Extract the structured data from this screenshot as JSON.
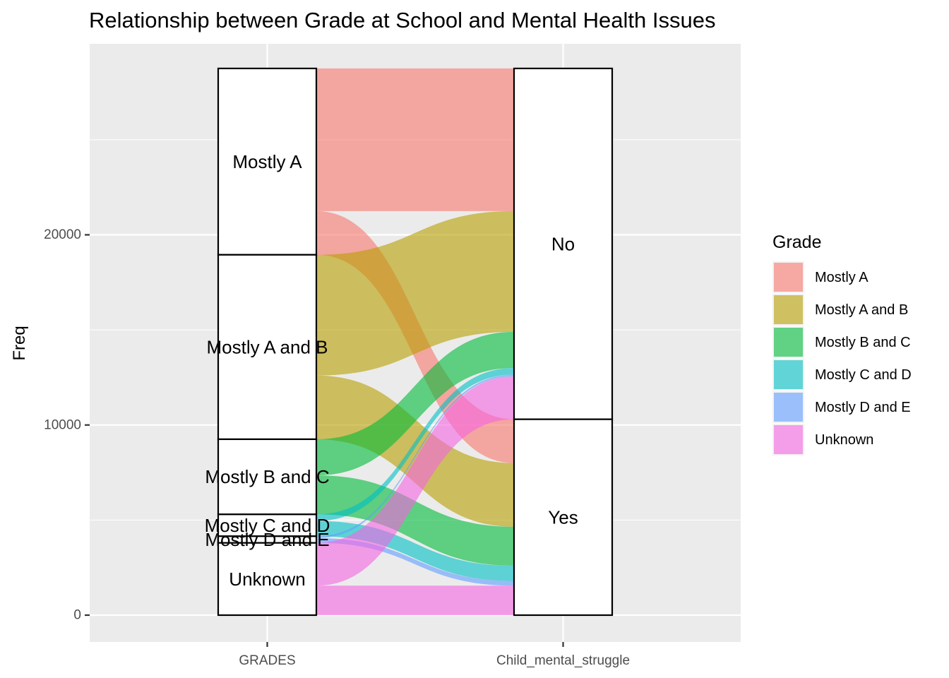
{
  "chart_data": {
    "type": "alluvial",
    "title": "Relationship between Grade at School and Mental Health Issues",
    "xlabel": "",
    "ylabel": "Freq",
    "ylim": [
      -1400,
      30000
    ],
    "y_ticks": [
      0,
      10000,
      20000
    ],
    "y_tick_labels": [
      "0",
      "10000",
      "20000"
    ],
    "axes": [
      "GRADES",
      "Child_mental_struggle"
    ],
    "grid": true,
    "legend_position": "right",
    "legend": {
      "title": "Grade",
      "entries": [
        "Mostly A",
        "Mostly A and B",
        "Mostly B and C",
        "Mostly C and D",
        "Mostly D and E",
        "Unknown"
      ]
    },
    "colors": {
      "Mostly A": "#F8766D",
      "Mostly A and B": "#B79F00",
      "Mostly B and C": "#00BA38",
      "Mostly C and D": "#00BFC4",
      "Mostly D and E": "#619CFF",
      "Unknown": "#F564E3"
    },
    "strata": {
      "GRADES": [
        "Mostly A",
        "Mostly A and B",
        "Mostly B and C",
        "Mostly C and D",
        "Mostly D and E",
        "Unknown"
      ],
      "Child_mental_struggle": [
        "No",
        "Yes"
      ]
    },
    "flows": [
      {
        "grade": "Mostly A",
        "struggle": "No",
        "value": 7500
      },
      {
        "grade": "Mostly A",
        "struggle": "Yes",
        "value": 2300
      },
      {
        "grade": "Mostly A and B",
        "struggle": "No",
        "value": 6350
      },
      {
        "grade": "Mostly A and B",
        "struggle": "Yes",
        "value": 3350
      },
      {
        "grade": "Mostly B and C",
        "struggle": "No",
        "value": 1900
      },
      {
        "grade": "Mostly B and C",
        "struggle": "Yes",
        "value": 2050
      },
      {
        "grade": "Mostly C and D",
        "struggle": "No",
        "value": 350
      },
      {
        "grade": "Mostly C and D",
        "struggle": "Yes",
        "value": 800
      },
      {
        "grade": "Mostly D and E",
        "struggle": "No",
        "value": 100
      },
      {
        "grade": "Mostly D and E",
        "struggle": "Yes",
        "value": 250
      },
      {
        "grade": "Unknown",
        "struggle": "No",
        "value": 2250
      },
      {
        "grade": "Unknown",
        "struggle": "Yes",
        "value": 1550
      }
    ]
  }
}
